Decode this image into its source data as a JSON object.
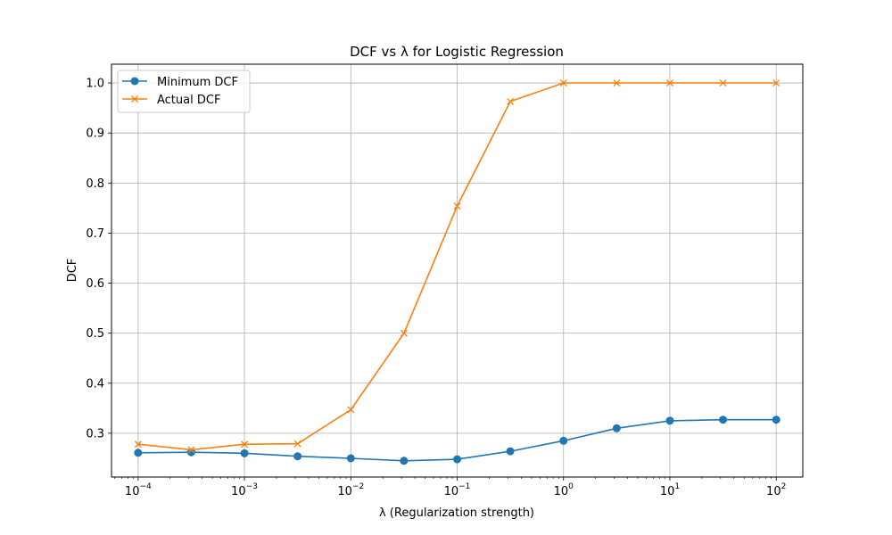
{
  "chart_data": {
    "type": "line",
    "title": "DCF vs λ for Logistic Regression",
    "xlabel": "λ (Regularization strength)",
    "ylabel": "DCF",
    "xscale": "log",
    "xlim": [
      5.62e-05,
      177.8
    ],
    "ylim": [
      0.2125,
      1.0375
    ],
    "grid": true,
    "legend_position": "top-left",
    "x": [
      0.0001,
      0.000316,
      0.001,
      0.00316,
      0.01,
      0.0316,
      0.1,
      0.316,
      1,
      3.16,
      10,
      31.6,
      100
    ],
    "x_ticks": [
      {
        "exp": "-4",
        "value": 0.0001
      },
      {
        "exp": "-3",
        "value": 0.001
      },
      {
        "exp": "-2",
        "value": 0.01
      },
      {
        "exp": "-1",
        "value": 0.1
      },
      {
        "exp": "0",
        "value": 1
      },
      {
        "exp": "1",
        "value": 10
      },
      {
        "exp": "2",
        "value": 100
      }
    ],
    "x_tick_base": "10",
    "y_ticks": [
      "0.3",
      "0.4",
      "0.5",
      "0.6",
      "0.7",
      "0.8",
      "0.9",
      "1.0"
    ],
    "series": [
      {
        "name": "Minimum DCF",
        "color": "#1f77b4",
        "marker": "circle",
        "values": [
          0.261,
          0.262,
          0.26,
          0.254,
          0.25,
          0.245,
          0.248,
          0.264,
          0.285,
          0.31,
          0.325,
          0.327,
          0.327
        ]
      },
      {
        "name": "Actual DCF",
        "color": "#ff7f0e",
        "marker": "x",
        "values": [
          0.278,
          0.267,
          0.278,
          0.279,
          0.347,
          0.5,
          0.754,
          0.963,
          1.0,
          1.0,
          1.0,
          1.0,
          1.0
        ]
      }
    ]
  }
}
